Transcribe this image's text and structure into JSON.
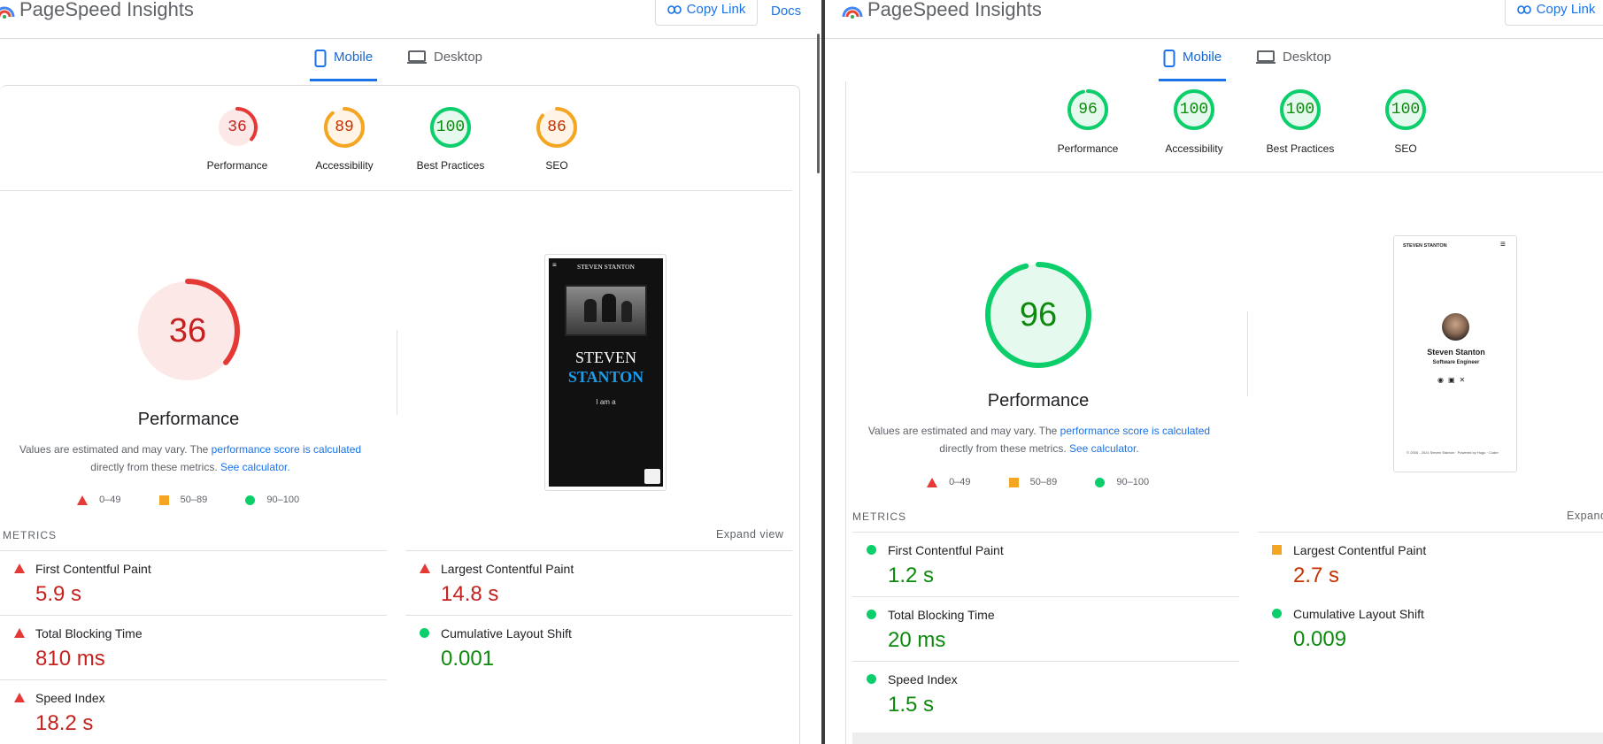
{
  "left": {
    "app_title": "PageSpeed Insights",
    "copy_link": "Copy Link",
    "docs": "Docs",
    "tabs": [
      {
        "label": "Mobile",
        "active": true
      },
      {
        "label": "Desktop",
        "active": false
      }
    ],
    "scores": [
      {
        "label": "Performance",
        "value": "36",
        "level": 0.36,
        "status": "poor"
      },
      {
        "label": "Accessibility",
        "value": "89",
        "level": 0.89,
        "status": "average"
      },
      {
        "label": "Best Practices",
        "value": "100",
        "level": 1.0,
        "status": "good"
      },
      {
        "label": "SEO",
        "value": "86",
        "level": 0.86,
        "status": "average"
      }
    ],
    "perf_score": "36",
    "perf_title": "Performance",
    "note": {
      "text1": "Values are estimated and may vary. The ",
      "link1": "performance score is calculated",
      "text2": "directly from these metrics. ",
      "link2": "See calculator."
    },
    "legend": [
      "0–49",
      "50–89",
      "90–100"
    ],
    "screenshot": {
      "site_name": "STEVEN STANTON",
      "hero_line1": "STEVEN",
      "hero_line2": "STANTON",
      "tagline": "I am a"
    },
    "metrics_header": "METRICS",
    "expand": "Expand view",
    "metrics": [
      {
        "name": "First Contentful Paint",
        "value": "5.9 s",
        "status": "poor"
      },
      {
        "name": "Largest Contentful Paint",
        "value": "14.8 s",
        "status": "poor"
      },
      {
        "name": "Total Blocking Time",
        "value": "810 ms",
        "status": "poor"
      },
      {
        "name": "Cumulative Layout Shift",
        "value": "0.001",
        "status": "good"
      },
      {
        "name": "Speed Index",
        "value": "18.2 s",
        "status": "poor"
      }
    ]
  },
  "right": {
    "app_title": "PageSpeed Insights",
    "copy_link": "Copy Link",
    "tabs": [
      {
        "label": "Mobile",
        "active": true
      },
      {
        "label": "Desktop",
        "active": false
      }
    ],
    "scores": [
      {
        "label": "Performance",
        "value": "96",
        "level": 0.96,
        "status": "good"
      },
      {
        "label": "Accessibility",
        "value": "100",
        "level": 1.0,
        "status": "good"
      },
      {
        "label": "Best Practices",
        "value": "100",
        "level": 1.0,
        "status": "good"
      },
      {
        "label": "SEO",
        "value": "100",
        "level": 1.0,
        "status": "good"
      }
    ],
    "perf_score": "96",
    "perf_title": "Performance",
    "note": {
      "text1": "Values are estimated and may vary. The ",
      "link1": "performance score is calculated",
      "text2": "directly from these metrics. ",
      "link2": "See calculator."
    },
    "legend": [
      "0–49",
      "50–89",
      "90–100"
    ],
    "screenshot": {
      "site_name": "STEVEN STANTON",
      "person": "Steven Stanton",
      "role": "Software Engineer",
      "footer": "© 2005 - 2024 Steven Stanton · Powered by Hugo · Coder"
    },
    "metrics_header": "METRICS",
    "expand": "Expand",
    "metrics": [
      {
        "name": "First Contentful Paint",
        "value": "1.2 s",
        "status": "good"
      },
      {
        "name": "Largest Contentful Paint",
        "value": "2.7 s",
        "status": "average"
      },
      {
        "name": "Total Blocking Time",
        "value": "20 ms",
        "status": "good"
      },
      {
        "name": "Cumulative Layout Shift",
        "value": "0.009",
        "status": "good"
      },
      {
        "name": "Speed Index",
        "value": "1.5 s",
        "status": "good"
      }
    ]
  },
  "colors": {
    "poor": "#e53935",
    "average": "#f4a623",
    "good": "#0cce6b",
    "poor_bg": "#fde8e8",
    "average_bg": "#fff4e5",
    "good_bg": "#e6f9ee",
    "accent": "#1a73e8"
  }
}
